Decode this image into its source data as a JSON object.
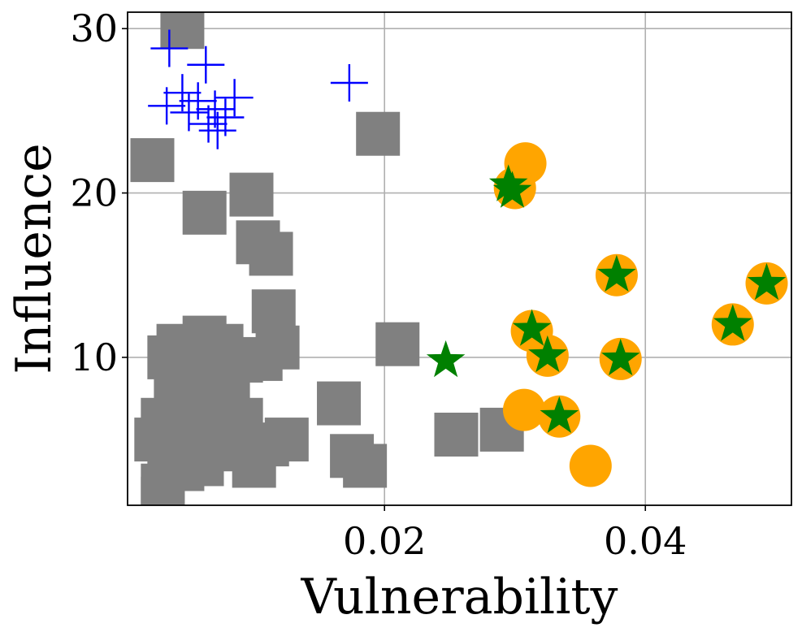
{
  "chart_data": {
    "type": "scatter",
    "title": "",
    "xlabel": "Vulnerability",
    "ylabel": "Influence",
    "xlim": [
      0.0003,
      0.0512
    ],
    "ylim": [
      1.0,
      31.0
    ],
    "xticks": [
      0.02,
      0.04
    ],
    "xtick_labels": [
      "0.02",
      "0.04"
    ],
    "yticks": [
      10,
      20,
      30
    ],
    "ytick_labels": [
      "10",
      "20",
      "30"
    ],
    "grid": true,
    "legend": "none",
    "series": [
      {
        "name": "gray-squares",
        "marker": "square",
        "color": "#808080",
        "points": [
          [
            0.0045,
            30.1
          ],
          [
            0.0022,
            22.0
          ],
          [
            0.0195,
            23.6
          ],
          [
            0.0062,
            18.8
          ],
          [
            0.0098,
            19.9
          ],
          [
            0.0103,
            17.0
          ],
          [
            0.0113,
            16.3
          ],
          [
            0.0115,
            12.8
          ],
          [
            0.0118,
            10.6
          ],
          [
            0.0042,
            10.7
          ],
          [
            0.0062,
            11.2
          ],
          [
            0.0075,
            10.7
          ],
          [
            0.0035,
            10.0
          ],
          [
            0.0055,
            10.2
          ],
          [
            0.009,
            9.8
          ],
          [
            0.0105,
            9.9
          ],
          [
            0.004,
            8.5
          ],
          [
            0.006,
            8.7
          ],
          [
            0.008,
            8.6
          ],
          [
            0.005,
            7.4
          ],
          [
            0.007,
            7.6
          ],
          [
            0.003,
            6.2
          ],
          [
            0.005,
            5.8
          ],
          [
            0.007,
            6.3
          ],
          [
            0.009,
            6.2
          ],
          [
            0.0025,
            5.0
          ],
          [
            0.0045,
            4.7
          ],
          [
            0.0065,
            4.5
          ],
          [
            0.0085,
            4.4
          ],
          [
            0.011,
            4.7
          ],
          [
            0.0125,
            5.0
          ],
          [
            0.0035,
            3.7
          ],
          [
            0.006,
            3.5
          ],
          [
            0.003,
            2.2
          ],
          [
            0.0045,
            3.2
          ],
          [
            0.01,
            3.4
          ],
          [
            0.003,
            1.4
          ],
          [
            0.0165,
            7.2
          ],
          [
            0.0175,
            4.0
          ],
          [
            0.0185,
            3.4
          ],
          [
            0.021,
            10.8
          ],
          [
            0.0255,
            5.3
          ],
          [
            0.029,
            5.6
          ]
        ]
      },
      {
        "name": "blue-crosses",
        "marker": "plus",
        "color": "#0000ff",
        "points": [
          [
            0.0035,
            28.8
          ],
          [
            0.0063,
            27.8
          ],
          [
            0.0045,
            26.1
          ],
          [
            0.0033,
            25.3
          ],
          [
            0.0057,
            25.6
          ],
          [
            0.007,
            25.1
          ],
          [
            0.0085,
            25.8
          ],
          [
            0.005,
            24.9
          ],
          [
            0.0078,
            24.6
          ],
          [
            0.0065,
            24.2
          ],
          [
            0.0072,
            23.8
          ],
          [
            0.0173,
            26.7
          ]
        ]
      },
      {
        "name": "orange-circles",
        "marker": "circle",
        "color": "#ffa500",
        "points": [
          [
            0.0308,
            21.8
          ],
          [
            0.03,
            20.3
          ],
          [
            0.0378,
            15.0
          ],
          [
            0.0493,
            14.5
          ],
          [
            0.0467,
            12.0
          ],
          [
            0.0313,
            11.6
          ],
          [
            0.0325,
            10.1
          ],
          [
            0.0381,
            9.9
          ],
          [
            0.0307,
            6.8
          ],
          [
            0.0334,
            6.4
          ],
          [
            0.0358,
            3.4
          ]
        ]
      },
      {
        "name": "green-stars",
        "marker": "star",
        "color": "#008000",
        "points": [
          [
            0.0295,
            20.5
          ],
          [
            0.0298,
            20.1
          ],
          [
            0.0378,
            15.0
          ],
          [
            0.0493,
            14.5
          ],
          [
            0.0467,
            12.0
          ],
          [
            0.0313,
            11.7
          ],
          [
            0.0325,
            10.1
          ],
          [
            0.0381,
            9.9
          ],
          [
            0.0247,
            9.8
          ],
          [
            0.0334,
            6.4
          ]
        ]
      }
    ]
  }
}
